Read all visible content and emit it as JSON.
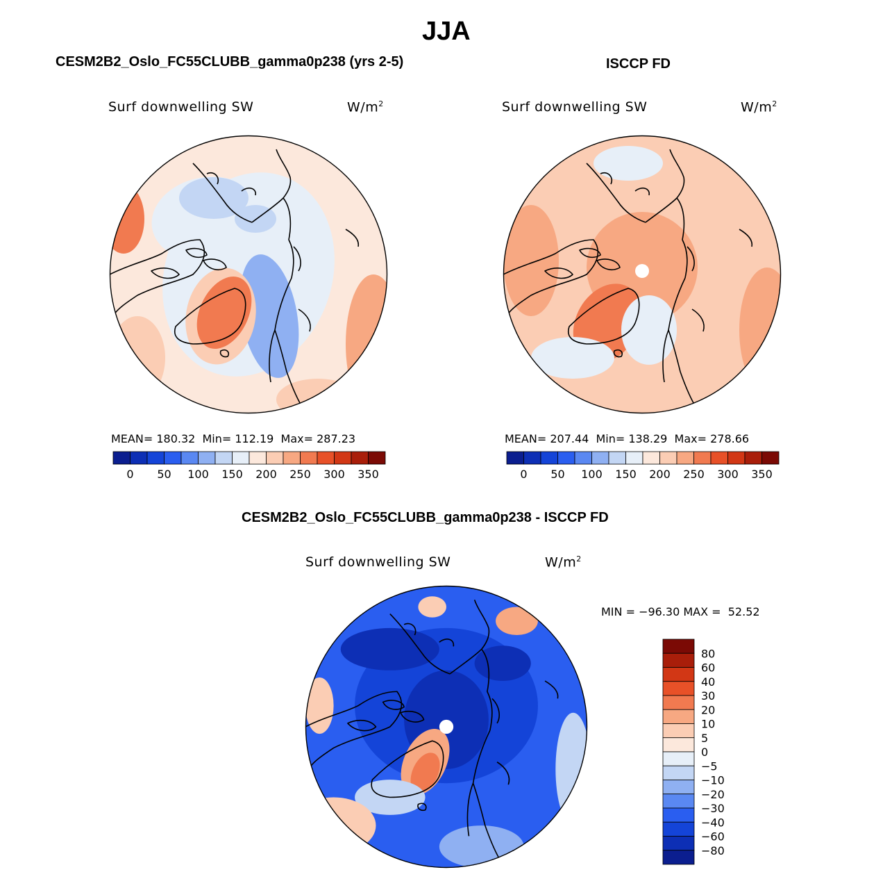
{
  "page": {
    "season": "JJA"
  },
  "colors": {
    "abs_scale": [
      "#0b1e8f",
      "#0d2fb5",
      "#1444d8",
      "#2a5ef0",
      "#5a88f2",
      "#8fb0f2",
      "#c3d6f4",
      "#e7eff8",
      "#fce8dc",
      "#fbcdb4",
      "#f7a882",
      "#f17a50",
      "#e85128",
      "#d23715",
      "#a91e0a",
      "#7b0a05"
    ],
    "diff_scale": [
      "#0b1e8f",
      "#0d2fb5",
      "#1444d8",
      "#2a5ef0",
      "#5a88f2",
      "#8fb0f2",
      "#c3d6f4",
      "#e7eff8",
      "#fce8dc",
      "#fbcdb4",
      "#f7a882",
      "#f17a50",
      "#e85128",
      "#d23715",
      "#a91e0a",
      "#7b0a05"
    ]
  },
  "chart_data": [
    {
      "type": "heatmap",
      "title": "CESM2B2_Oslo_FC55CLUBB_gamma0p238 (yrs 2-5)",
      "variable": "Surf downwelling SW",
      "units": "W/m",
      "units_exp": "2",
      "stats": {
        "mean_label": "MEAN=",
        "mean": "180.32",
        "min_label": "Min=",
        "min": "112.19",
        "max_label": "Max=",
        "max": "287.23"
      },
      "colorbar_ticks": [
        "0",
        "50",
        "100",
        "150",
        "200",
        "250",
        "300",
        "350"
      ]
    },
    {
      "type": "heatmap",
      "title": "ISCCP FD",
      "variable": "Surf downwelling SW",
      "units": "W/m",
      "units_exp": "2",
      "stats": {
        "mean_label": "MEAN=",
        "mean": "207.44",
        "min_label": "Min=",
        "min": "138.29",
        "max_label": "Max=",
        "max": "278.66"
      },
      "colorbar_ticks": [
        "0",
        "50",
        "100",
        "150",
        "200",
        "250",
        "300",
        "350"
      ]
    },
    {
      "type": "heatmap",
      "title": "CESM2B2_Oslo_FC55CLUBB_gamma0p238 - ISCCP FD",
      "variable": "Surf downwelling SW",
      "units": "W/m",
      "units_exp": "2",
      "stats_text": "MIN = −96.30 MAX =  52.52",
      "colorbar_ticks": [
        "80",
        "60",
        "40",
        "30",
        "20",
        "10",
        "5",
        "0",
        "−5",
        "−10",
        "−20",
        "−30",
        "−40",
        "−60",
        "−80"
      ]
    }
  ]
}
